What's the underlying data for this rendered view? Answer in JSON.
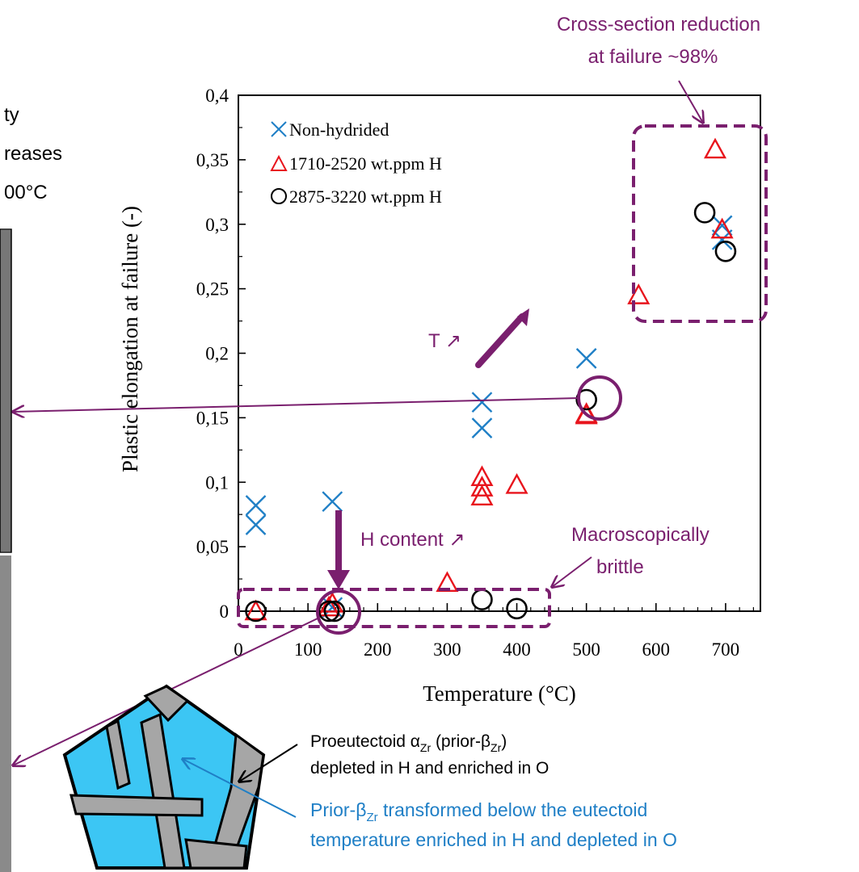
{
  "left_text": {
    "line1": "ty",
    "line2": "reases",
    "line3": "00°C"
  },
  "chart_data": {
    "type": "scatter",
    "xlabel": "Temperature (°C)",
    "ylabel": "Plastic elongation at failure (-)",
    "xlim": [
      0,
      750
    ],
    "ylim": [
      0,
      0.4
    ],
    "x_ticks": [
      "0",
      "100",
      "200",
      "300",
      "400",
      "500",
      "600",
      "700"
    ],
    "y_ticks": [
      "0",
      "0,05",
      "0,1",
      "0,15",
      "0,2",
      "0,25",
      "0,3",
      "0,35",
      "0,4"
    ],
    "legend_position": "top-left",
    "series": [
      {
        "name": "Non-hydrided",
        "marker": "x",
        "color": "#1f7fc6",
        "points": [
          [
            25,
            0.082
          ],
          [
            25,
            0.067
          ],
          [
            135,
            0.085
          ],
          [
            135,
            0.003
          ],
          [
            350,
            0.162
          ],
          [
            350,
            0.142
          ],
          [
            500,
            0.196
          ],
          [
            695,
            0.299
          ],
          [
            695,
            0.288
          ]
        ]
      },
      {
        "name": "1710-2520 wt.ppm H",
        "marker": "triangle",
        "color": "#e8141c",
        "points": [
          [
            25,
            0.0
          ],
          [
            130,
            0.003
          ],
          [
            135,
            0.006
          ],
          [
            300,
            0.022
          ],
          [
            350,
            0.104
          ],
          [
            350,
            0.096
          ],
          [
            350,
            0.089
          ],
          [
            400,
            0.098
          ],
          [
            500,
            0.153
          ],
          [
            500,
            0.152
          ],
          [
            575,
            0.245
          ],
          [
            685,
            0.358
          ],
          [
            695,
            0.296
          ]
        ]
      },
      {
        "name": "2875-3220 wt.ppm H",
        "marker": "circle",
        "color": "#000000",
        "points": [
          [
            25,
            0.0
          ],
          [
            130,
            0.0
          ],
          [
            138,
            0.0
          ],
          [
            350,
            0.009
          ],
          [
            400,
            0.002
          ],
          [
            500,
            0.164
          ],
          [
            670,
            0.309
          ],
          [
            700,
            0.279
          ]
        ]
      }
    ],
    "annotations": {
      "cross_section": {
        "line1": "Cross-section reduction",
        "line2": "at failure ~98%"
      },
      "temperature_arrow": "T ↗",
      "h_content": "H content ↗",
      "brittle": {
        "line1": "Macroscopically",
        "line2": "brittle"
      }
    }
  },
  "diagram": {
    "proeutectoid": {
      "alpha": "Proeutectoid α",
      "alpha_sub": "Zr",
      "paren_open": " (prior-β",
      "paren_sub": "Zr",
      "paren_close": ")",
      "line2": "depleted in H and enriched in O"
    },
    "prior_beta": {
      "prefix": "Prior-β",
      "sub": "Zr",
      "suffix": " transformed below the eutectoid",
      "line2": "temperature enriched in H and depleted in O"
    }
  },
  "colors": {
    "purple": "#7a1f6e",
    "blue": "#1f7fc6",
    "red": "#e8141c",
    "cyan": "#3cc6f4",
    "gray": "#a6a6a6"
  }
}
